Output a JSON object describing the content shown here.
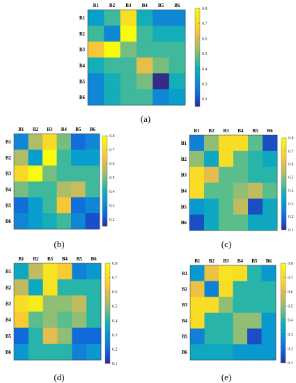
{
  "colormap": "parula",
  "chart_data": [
    {
      "type": "heatmap",
      "panel_label": "(a)",
      "title": "",
      "xlabel": "",
      "ylabel": "",
      "x_categories": [
        "B1",
        "B2",
        "B3",
        "B4",
        "B5",
        "B6"
      ],
      "y_categories": [
        "B1",
        "B2",
        "B3",
        "B4",
        "B5",
        "B6"
      ],
      "values": [
        [
          0.35,
          0.45,
          0.72,
          0.4,
          0.3,
          0.3
        ],
        [
          0.45,
          0.3,
          0.8,
          0.45,
          0.4,
          0.4
        ],
        [
          0.65,
          0.8,
          0.5,
          0.45,
          0.45,
          0.45
        ],
        [
          0.4,
          0.45,
          0.45,
          0.62,
          0.5,
          0.45
        ],
        [
          0.3,
          0.4,
          0.45,
          0.5,
          0.15,
          0.4
        ],
        [
          0.3,
          0.4,
          0.45,
          0.45,
          0.3,
          0.35
        ]
      ],
      "colorbar": {
        "min": 0.15,
        "max": 0.8,
        "ticks": [
          "0.2",
          "0.3",
          "0.4",
          "0.5",
          "0.6",
          "0.7",
          "0.8"
        ],
        "tick_values": [
          0.2,
          0.3,
          0.4,
          0.5,
          0.6,
          0.7,
          0.8
        ]
      },
      "grid": false
    },
    {
      "type": "heatmap",
      "panel_label": "(b)",
      "title": "",
      "xlabel": "",
      "ylabel": "",
      "x_categories": [
        "B1",
        "B2",
        "B3",
        "B4",
        "B5",
        "B6"
      ],
      "y_categories": [
        "B1",
        "B2",
        "B3",
        "B4",
        "B5",
        "B6"
      ],
      "values": [
        [
          0.3,
          0.55,
          0.7,
          0.5,
          0.25,
          0.3
        ],
        [
          0.55,
          0.35,
          0.8,
          0.45,
          0.35,
          0.35
        ],
        [
          0.7,
          0.8,
          0.5,
          0.45,
          0.45,
          0.45
        ],
        [
          0.5,
          0.45,
          0.45,
          0.55,
          0.58,
          0.45
        ],
        [
          0.25,
          0.35,
          0.45,
          0.65,
          0.25,
          0.3
        ],
        [
          0.3,
          0.35,
          0.4,
          0.45,
          0.3,
          0.2
        ]
      ],
      "colorbar": {
        "min": 0.15,
        "max": 0.8,
        "ticks": [
          "0.2",
          "0.3",
          "0.4",
          "0.5",
          "0.6",
          "0.7",
          "0.8"
        ],
        "tick_values": [
          0.2,
          0.3,
          0.4,
          0.5,
          0.6,
          0.7,
          0.8
        ]
      },
      "grid": false
    },
    {
      "type": "heatmap",
      "panel_label": "(c)",
      "title": "",
      "xlabel": "",
      "ylabel": "",
      "x_categories": [
        "B1",
        "B2",
        "B3",
        "B4",
        "B5",
        "B6"
      ],
      "y_categories": [
        "B1",
        "B2",
        "B3",
        "B4",
        "B5",
        "B6"
      ],
      "values": [
        [
          0.25,
          0.5,
          0.7,
          0.7,
          0.45,
          0.15
        ],
        [
          0.5,
          0.35,
          0.7,
          0.45,
          0.4,
          0.35
        ],
        [
          0.7,
          0.6,
          0.45,
          0.45,
          0.4,
          0.4
        ],
        [
          0.7,
          0.45,
          0.45,
          0.5,
          0.55,
          0.45
        ],
        [
          0.3,
          0.35,
          0.45,
          0.55,
          0.15,
          0.35
        ],
        [
          0.15,
          0.35,
          0.45,
          0.45,
          0.35,
          0.35
        ]
      ],
      "colorbar": {
        "min": 0.1,
        "max": 0.8,
        "ticks": [
          "0.1",
          "0.2",
          "0.3",
          "0.4",
          "0.5",
          "0.6",
          "0.7",
          "0.8"
        ],
        "tick_values": [
          0.1,
          0.2,
          0.3,
          0.4,
          0.5,
          0.6,
          0.7,
          0.8
        ]
      },
      "grid": false
    },
    {
      "type": "heatmap",
      "panel_label": "(d)",
      "title": "",
      "xlabel": "",
      "ylabel": "",
      "x_categories": [
        "B1",
        "B2",
        "B3",
        "B4",
        "B5",
        "B6"
      ],
      "y_categories": [
        "B1",
        "B2",
        "B3",
        "B4",
        "B5",
        "B6"
      ],
      "values": [
        [
          0.35,
          0.55,
          0.72,
          0.65,
          0.25,
          0.3
        ],
        [
          0.55,
          0.35,
          0.72,
          0.4,
          0.4,
          0.4
        ],
        [
          0.7,
          0.75,
          0.5,
          0.5,
          0.55,
          0.4
        ],
        [
          0.65,
          0.45,
          0.5,
          0.45,
          0.5,
          0.4
        ],
        [
          0.2,
          0.4,
          0.6,
          0.5,
          0.2,
          0.2
        ],
        [
          0.3,
          0.4,
          0.4,
          0.4,
          0.25,
          0.3
        ]
      ],
      "colorbar": {
        "min": 0.1,
        "max": 0.8,
        "ticks": [
          "0.1",
          "0.2",
          "0.3",
          "0.4",
          "0.5",
          "0.6",
          "0.7",
          "0.8"
        ],
        "tick_values": [
          0.1,
          0.2,
          0.3,
          0.4,
          0.5,
          0.6,
          0.7,
          0.8
        ]
      },
      "grid": false
    },
    {
      "type": "heatmap",
      "panel_label": "(e)",
      "title": "",
      "xlabel": "",
      "ylabel": "",
      "x_categories": [
        "B1",
        "B2",
        "B3",
        "B4",
        "B5",
        "B6"
      ],
      "y_categories": [
        "B1",
        "B2",
        "B3",
        "B4",
        "B5",
        "B6"
      ],
      "values": [
        [
          0.3,
          0.62,
          0.72,
          0.7,
          0.4,
          0.3
        ],
        [
          0.62,
          0.25,
          0.7,
          0.4,
          0.4,
          0.4
        ],
        [
          0.7,
          0.7,
          0.5,
          0.4,
          0.4,
          0.4
        ],
        [
          0.7,
          0.4,
          0.4,
          0.5,
          0.5,
          0.3
        ],
        [
          0.25,
          0.4,
          0.4,
          0.5,
          0.15,
          0.3
        ],
        [
          0.35,
          0.35,
          0.35,
          0.3,
          0.3,
          0.3
        ]
      ],
      "colorbar": {
        "min": 0.1,
        "max": 0.8,
        "ticks": [
          "0.1",
          "0.2",
          "0.3",
          "0.4",
          "0.5",
          "0.6",
          "0.7",
          "0.8"
        ],
        "tick_values": [
          0.1,
          0.2,
          0.3,
          0.4,
          0.5,
          0.6,
          0.7,
          0.8
        ]
      },
      "grid": false
    }
  ]
}
